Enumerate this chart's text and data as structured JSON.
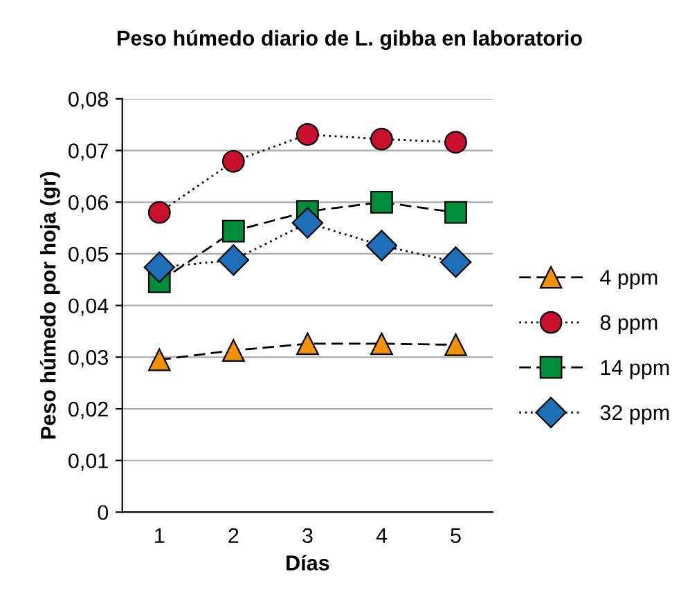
{
  "chart_data": {
    "type": "line",
    "title": "Peso húmedo diario de L. gibba en laboratorio",
    "xlabel": "Días",
    "ylabel": "Peso húmedo por hoja (gr)",
    "categories": [
      "1",
      "2",
      "3",
      "4",
      "5"
    ],
    "ylim": [
      0,
      0.08
    ],
    "yticks": [
      {
        "value": 0,
        "label": "0"
      },
      {
        "value": 0.01,
        "label": "0,01"
      },
      {
        "value": 0.02,
        "label": "0,02"
      },
      {
        "value": 0.03,
        "label": "0,03"
      },
      {
        "value": 0.04,
        "label": "0,04"
      },
      {
        "value": 0.05,
        "label": "0,05"
      },
      {
        "value": 0.06,
        "label": "0,06"
      },
      {
        "value": 0.07,
        "label": "0,07"
      },
      {
        "value": 0.08,
        "label": "0,08"
      }
    ],
    "grid": "y",
    "legend": "right",
    "series": [
      {
        "name": "4 ppm",
        "color": "#f39200",
        "marker": "triangle",
        "line_style": "dashed",
        "values": [
          0.0295,
          0.0313,
          0.0326,
          0.0326,
          0.0324
        ]
      },
      {
        "name": "8 ppm",
        "color": "#c8102e",
        "marker": "circle",
        "line_style": "dotted",
        "values": [
          0.058,
          0.0679,
          0.0731,
          0.0722,
          0.0716
        ]
      },
      {
        "name": "14 ppm",
        "color": "#008c3a",
        "marker": "square",
        "line_style": "dashed",
        "values": [
          0.0446,
          0.0544,
          0.0582,
          0.06,
          0.058
        ]
      },
      {
        "name": "32 ppm",
        "color": "#1f6fb8",
        "marker": "diamond",
        "line_style": "dotted",
        "values": [
          0.0474,
          0.0488,
          0.056,
          0.0516,
          0.0484
        ]
      }
    ]
  }
}
